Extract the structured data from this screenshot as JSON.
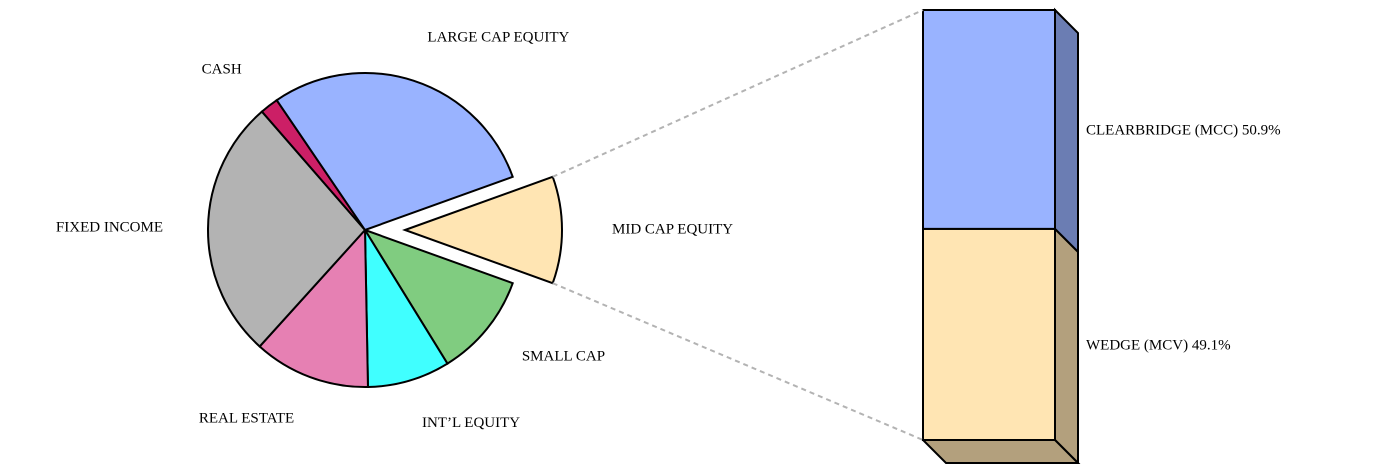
{
  "chart_data": [
    {
      "type": "pie",
      "categories": [
        "MID CAP EQUITY",
        "SMALL CAP",
        "INT’L EQUITY",
        "REAL ESTATE",
        "FIXED INCOME",
        "CASH",
        "LARGE CAP EQUITY"
      ],
      "values": [
        11,
        10.7,
        8.5,
        12,
        26.9,
        1.9,
        29
      ],
      "colors": [
        "#ffe5b3",
        "#80cc80",
        "#40ffff",
        "#e680b3",
        "#b3b3b3",
        "#cc1f66",
        "#99b3ff"
      ],
      "exploded": "MID CAP EQUITY"
    },
    {
      "type": "bar",
      "stacked": true,
      "series": [
        {
          "name": "WEDGE (MCV)",
          "color": "#ffe5b3",
          "values": [
            49.1
          ],
          "value_labels": [
            "49.1%"
          ]
        },
        {
          "name": "CLEARBRIDGE (MCC)",
          "color": "#99b3ff",
          "values": [
            50.9
          ],
          "value_labels": [
            "50.9%"
          ]
        }
      ]
    }
  ]
}
